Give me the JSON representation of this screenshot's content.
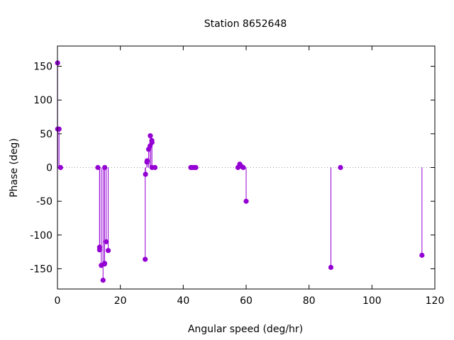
{
  "chart_data": {
    "type": "scatter",
    "title": "Station 8652648",
    "xlabel": "Angular speed (deg/hr)",
    "ylabel": "Phase (deg)",
    "xlim": [
      0,
      120
    ],
    "ylim": [
      -180,
      180
    ],
    "x_ticks": [
      0,
      20,
      40,
      60,
      80,
      100,
      120
    ],
    "y_ticks": [
      -150,
      -100,
      -50,
      0,
      50,
      100,
      150
    ],
    "x_tick_labels": [
      "0",
      "20",
      "40",
      "60",
      "80",
      "100",
      "120"
    ],
    "y_tick_labels": [
      "-150",
      "-100",
      "-50",
      "0",
      "50",
      "100",
      "150"
    ],
    "grid": false,
    "zero_line": "dotted",
    "style": "impulses-with-points",
    "series_color": "#9400d3",
    "points": [
      {
        "x": 0.04,
        "y": 155
      },
      {
        "x": 0.08,
        "y": 57
      },
      {
        "x": 0.5,
        "y": 57
      },
      {
        "x": 0.98,
        "y": 0
      },
      {
        "x": 12.85,
        "y": 0
      },
      {
        "x": 13.4,
        "y": -118
      },
      {
        "x": 13.4,
        "y": -122
      },
      {
        "x": 13.94,
        "y": -145
      },
      {
        "x": 14.5,
        "y": -167
      },
      {
        "x": 14.96,
        "y": -143
      },
      {
        "x": 15.0,
        "y": -142
      },
      {
        "x": 15.04,
        "y": 0
      },
      {
        "x": 15.5,
        "y": -110
      },
      {
        "x": 16.14,
        "y": -123
      },
      {
        "x": 27.9,
        "y": -136
      },
      {
        "x": 28.0,
        "y": -10
      },
      {
        "x": 28.44,
        "y": 8
      },
      {
        "x": 28.51,
        "y": 10
      },
      {
        "x": 28.98,
        "y": 27
      },
      {
        "x": 29.46,
        "y": 32
      },
      {
        "x": 29.53,
        "y": 47
      },
      {
        "x": 30.0,
        "y": 40
      },
      {
        "x": 30.04,
        "y": 37
      },
      {
        "x": 30.08,
        "y": 0
      },
      {
        "x": 31.02,
        "y": 0
      },
      {
        "x": 42.4,
        "y": 0
      },
      {
        "x": 42.9,
        "y": 0
      },
      {
        "x": 43.5,
        "y": 0
      },
      {
        "x": 44.0,
        "y": 0
      },
      {
        "x": 57.4,
        "y": 0
      },
      {
        "x": 57.97,
        "y": 5
      },
      {
        "x": 58.4,
        "y": 2
      },
      {
        "x": 59.07,
        "y": 0
      },
      {
        "x": 60.0,
        "y": -50
      },
      {
        "x": 86.95,
        "y": -148
      },
      {
        "x": 90.0,
        "y": 0
      },
      {
        "x": 115.9,
        "y": -130
      }
    ]
  }
}
